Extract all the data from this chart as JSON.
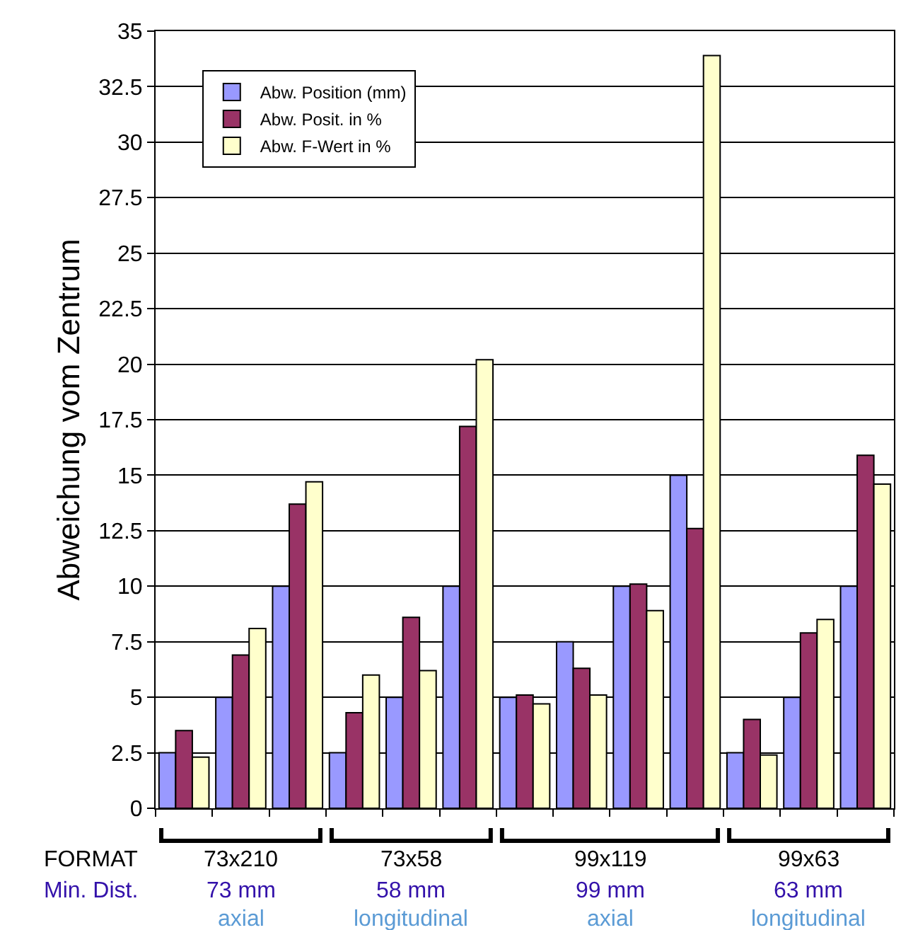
{
  "chart_data": {
    "type": "bar",
    "ylabel": "Abweichung vom Zentrum",
    "categories": [
      null,
      null,
      null,
      null,
      null,
      null,
      null,
      null,
      null,
      null,
      null,
      null,
      null
    ],
    "series": [
      {
        "name": "Abw. Position (mm)",
        "color": "#9999ff",
        "values": [
          2.5,
          5,
          10,
          2.5,
          5,
          10,
          5,
          7.5,
          10,
          15,
          2.5,
          5,
          10
        ]
      },
      {
        "name": "Abw. Posit. in %",
        "color": "#993366",
        "values": [
          3.5,
          6.9,
          13.7,
          4.3,
          8.6,
          17.2,
          5.1,
          6.3,
          10.1,
          12.6,
          4.0,
          7.9,
          15.9
        ]
      },
      {
        "name": "Abw. F-Wert in %",
        "color": "#ffffcc",
        "values": [
          2.3,
          8.1,
          14.7,
          6.0,
          6.2,
          20.2,
          4.7,
          5.1,
          8.9,
          33.9,
          2.4,
          8.5,
          14.6
        ]
      }
    ],
    "ylim": [
      0,
      35
    ],
    "yticks": [
      0,
      2.5,
      5,
      7.5,
      10,
      12.5,
      15,
      17.5,
      20,
      22.5,
      25,
      27.5,
      30,
      32.5,
      35
    ],
    "grid": "y",
    "legend": "top left",
    "tick_labels": "y",
    "annotations": [
      "FORMAT",
      "Min. Dist.",
      "73x210",
      "73 mm",
      "axial",
      "73x58",
      "58 mm",
      "longitudinal",
      "99x119",
      "99 mm",
      "axial",
      "99x63",
      "63 mm",
      "longitudinal"
    ]
  }
}
